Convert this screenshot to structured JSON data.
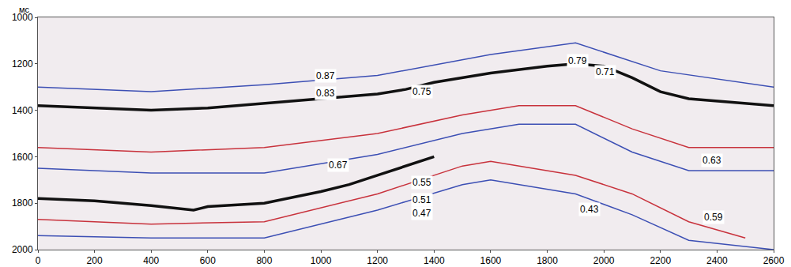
{
  "chart_data": {
    "type": "line",
    "ylabel": "мс",
    "xlim": [
      0,
      2600
    ],
    "xticks": [
      0,
      200,
      400,
      600,
      800,
      1000,
      1200,
      1400,
      1600,
      1800,
      2000,
      2200,
      2400,
      2600
    ],
    "ylim": [
      2000,
      1000
    ],
    "yticks": [
      1000,
      1200,
      1400,
      1600,
      1800,
      2000
    ],
    "grid": false,
    "series": [
      {
        "color": "#3c4fb4",
        "line_style": "solid",
        "x": [
          0,
          400,
          800,
          1200,
          1600,
          1900,
          2200,
          2600
        ],
        "values": [
          1300,
          1320,
          1290,
          1250,
          1160,
          1110,
          1230,
          1300
        ]
      },
      {
        "color": "#c8323c",
        "line_style": "solid",
        "x": [
          0,
          400,
          800,
          1200,
          1500,
          1700,
          1900,
          2100,
          2300,
          2600
        ],
        "values": [
          1560,
          1580,
          1560,
          1500,
          1420,
          1380,
          1380,
          1480,
          1560,
          1560
        ]
      },
      {
        "color": "#3c4fb4",
        "line_style": "solid",
        "x": [
          0,
          400,
          800,
          1200,
          1500,
          1700,
          1900,
          2100,
          2300,
          2600
        ],
        "values": [
          1650,
          1670,
          1670,
          1590,
          1500,
          1460,
          1460,
          1580,
          1660,
          1660
        ]
      },
      {
        "color": "#c8323c",
        "line_style": "solid",
        "x": [
          0,
          400,
          800,
          1200,
          1500,
          1600,
          1900,
          2100,
          2300,
          2500
        ],
        "values": [
          1870,
          1890,
          1880,
          1760,
          1640,
          1620,
          1680,
          1760,
          1880,
          1950
        ]
      },
      {
        "color": "#3c4fb4",
        "line_style": "solid",
        "x": [
          0,
          400,
          800,
          1200,
          1500,
          1600,
          1900,
          2100,
          2300,
          2600
        ],
        "values": [
          1940,
          1950,
          1950,
          1830,
          1720,
          1700,
          1760,
          1850,
          1960,
          2000
        ]
      },
      {
        "color": "#111111",
        "line_style": "bold",
        "x": [
          0,
          200,
          400,
          600,
          800,
          1000,
          1200,
          1300,
          1400,
          1600,
          1800,
          1900,
          2000,
          2100,
          2200,
          2300,
          2400,
          2500,
          2600
        ],
        "values": [
          1380,
          1390,
          1400,
          1390,
          1370,
          1350,
          1330,
          1310,
          1280,
          1240,
          1210,
          1200,
          1210,
          1260,
          1320,
          1350,
          1360,
          1370,
          1380
        ]
      },
      {
        "color": "#111111",
        "line_style": "bold",
        "x": [
          0,
          200,
          400,
          550,
          600,
          800,
          1000,
          1100,
          1200,
          1400
        ],
        "values": [
          1780,
          1790,
          1810,
          1830,
          1815,
          1800,
          1750,
          1720,
          1680,
          1600
        ]
      }
    ],
    "annotations": [
      {
        "text": "0.87",
        "x": 1017,
        "y": 1253
      },
      {
        "text": "0.83",
        "x": 1017,
        "y": 1327
      },
      {
        "text": "0.75",
        "x": 1357,
        "y": 1320
      },
      {
        "text": "0.79",
        "x": 1908,
        "y": 1187
      },
      {
        "text": "0.71",
        "x": 2006,
        "y": 1233
      },
      {
        "text": "0.67",
        "x": 1060,
        "y": 1637
      },
      {
        "text": "0.55",
        "x": 1357,
        "y": 1710
      },
      {
        "text": "0.51",
        "x": 1357,
        "y": 1787
      },
      {
        "text": "0.47",
        "x": 1357,
        "y": 1843
      },
      {
        "text": "0.43",
        "x": 1950,
        "y": 1827
      },
      {
        "text": "0.63",
        "x": 2382,
        "y": 1617
      },
      {
        "text": "0.59",
        "x": 2388,
        "y": 1860
      }
    ]
  }
}
